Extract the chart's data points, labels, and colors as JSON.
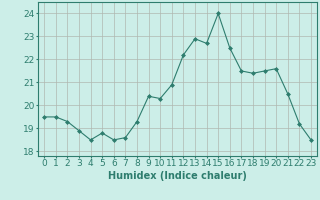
{
  "x": [
    0,
    1,
    2,
    3,
    4,
    5,
    6,
    7,
    8,
    9,
    10,
    11,
    12,
    13,
    14,
    15,
    16,
    17,
    18,
    19,
    20,
    21,
    22,
    23
  ],
  "y": [
    19.5,
    19.5,
    19.3,
    18.9,
    18.5,
    18.8,
    18.5,
    18.6,
    19.3,
    20.4,
    20.3,
    20.9,
    22.2,
    22.9,
    22.7,
    24.0,
    22.5,
    21.5,
    21.4,
    21.5,
    21.6,
    20.5,
    19.2,
    18.5
  ],
  "xlabel": "Humidex (Indice chaleur)",
  "xlim": [
    -0.5,
    23.5
  ],
  "ylim": [
    17.8,
    24.5
  ],
  "yticks": [
    18,
    19,
    20,
    21,
    22,
    23,
    24
  ],
  "xticks": [
    0,
    1,
    2,
    3,
    4,
    5,
    6,
    7,
    8,
    9,
    10,
    11,
    12,
    13,
    14,
    15,
    16,
    17,
    18,
    19,
    20,
    21,
    22,
    23
  ],
  "line_color": "#2e7d6e",
  "marker": "D",
  "marker_size": 2.0,
  "bg_color": "#cceee8",
  "grid_color": "#b0b8b0",
  "axes_color": "#2e7d6e",
  "label_color": "#2e7d6e",
  "tick_color": "#2e7d6e",
  "xlabel_fontsize": 7,
  "tick_fontsize": 6.5
}
